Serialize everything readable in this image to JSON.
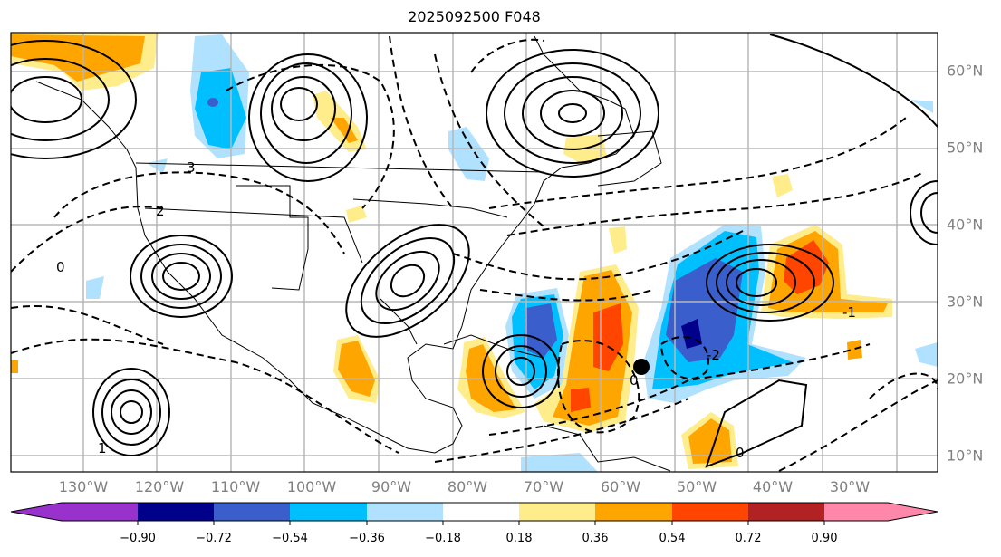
{
  "title": "2025092500 F048",
  "lon_labels": [
    "130°W",
    "120°W",
    "110°W",
    "100°W",
    "90°W",
    "80°W",
    "70°W",
    "60°W",
    "50°W",
    "40°W",
    "30°W"
  ],
  "lat_labels": [
    "60°N",
    "50°N",
    "40°N",
    "30°N",
    "20°N",
    "10°N"
  ],
  "contour_labels": [
    "0",
    "1",
    "2",
    "3",
    "-1",
    "-2"
  ],
  "colorbar": {
    "ticks": [
      "−0.90",
      "−0.72",
      "−0.54",
      "−0.36",
      "−0.18",
      "0.18",
      "0.36",
      "0.54",
      "0.72",
      "0.90"
    ],
    "colors": [
      "#9932cc",
      "#00008b",
      "#3a5fcd",
      "#00bfff",
      "#b0e2ff",
      "#ffffff",
      "#ffec8b",
      "#ffa500",
      "#ff4500",
      "#b22222",
      "#ff88aa"
    ]
  },
  "marker": {
    "label": "storm-position",
    "color": "#000000"
  }
}
